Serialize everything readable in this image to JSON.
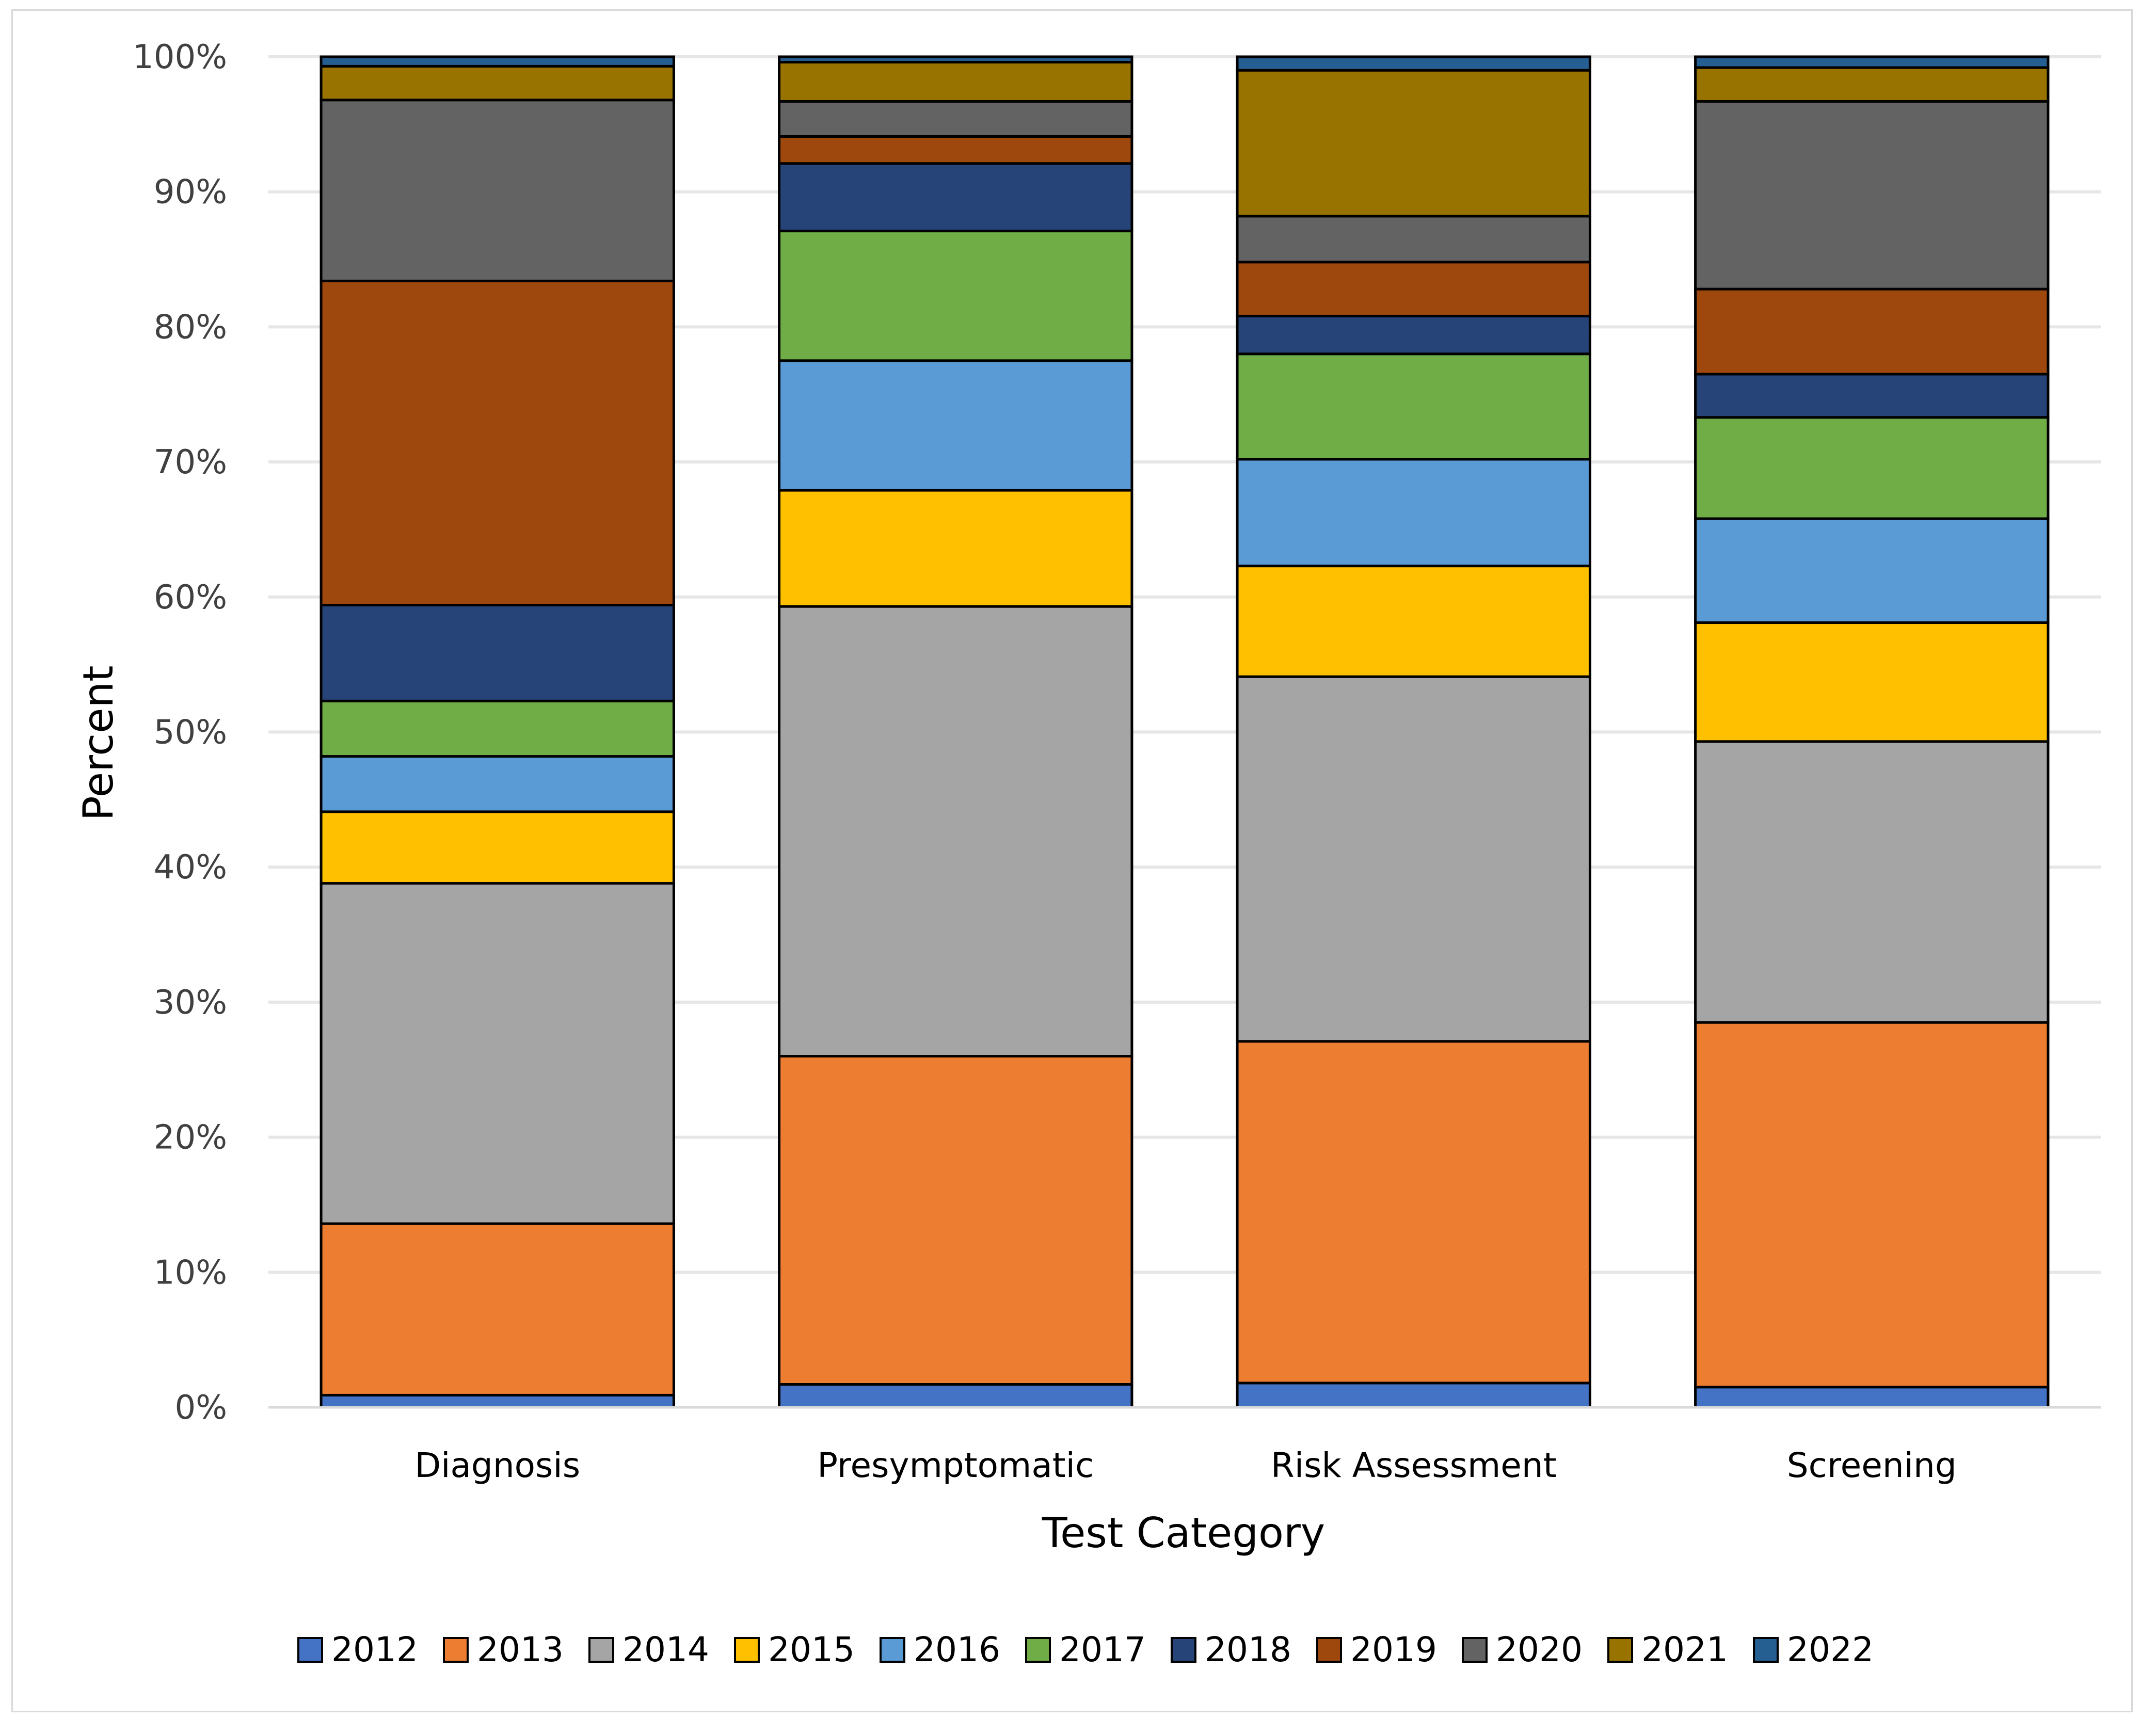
{
  "chart_data": {
    "type": "bar",
    "stacked": true,
    "normalized": true,
    "title": "",
    "xlabel": "Test Category",
    "ylabel": "Percent",
    "ylim": [
      0,
      100
    ],
    "yticks": [
      "0%",
      "10%",
      "20%",
      "30%",
      "40%",
      "50%",
      "60%",
      "70%",
      "80%",
      "90%",
      "100%"
    ],
    "grid": true,
    "legend_position": "bottom",
    "categories": [
      "Diagnosis",
      "Presymptomatic",
      "Risk Assessment",
      "Screening"
    ],
    "series": [
      {
        "name": "2012",
        "color": "#4472c4",
        "values": [
          0.9,
          1.7,
          1.8,
          1.5
        ]
      },
      {
        "name": "2013",
        "color": "#ed7d31",
        "values": [
          12.7,
          24.3,
          25.3,
          27.0
        ]
      },
      {
        "name": "2014",
        "color": "#a5a5a5",
        "values": [
          25.2,
          33.3,
          27.0,
          20.8
        ]
      },
      {
        "name": "2015",
        "color": "#ffc000",
        "values": [
          5.3,
          8.6,
          8.2,
          8.8
        ]
      },
      {
        "name": "2016",
        "color": "#5b9bd5",
        "values": [
          4.1,
          9.6,
          7.9,
          7.7
        ]
      },
      {
        "name": "2017",
        "color": "#70ad47",
        "values": [
          4.1,
          9.6,
          7.8,
          7.5
        ]
      },
      {
        "name": "2018",
        "color": "#264478",
        "values": [
          7.1,
          5.0,
          2.8,
          3.2
        ]
      },
      {
        "name": "2019",
        "color": "#9e480e",
        "values": [
          24.0,
          2.0,
          4.0,
          6.3
        ]
      },
      {
        "name": "2020",
        "color": "#636363",
        "values": [
          13.4,
          2.6,
          3.4,
          13.9
        ]
      },
      {
        "name": "2021",
        "color": "#997300",
        "values": [
          2.5,
          2.9,
          10.8,
          2.5
        ]
      },
      {
        "name": "2022",
        "color": "#255e91",
        "values": [
          0.7,
          0.4,
          1.0,
          0.8
        ]
      }
    ]
  }
}
